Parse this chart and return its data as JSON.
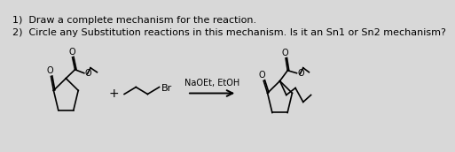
{
  "bg_color": "#d8d8d8",
  "text_line1": "1)  Draw a complete mechanism for the reaction.",
  "text_line2": "2)  Circle any Substitution reactions in this mechanism. Is it an Sn1 or Sn2 mechanism?",
  "reagent_text": "NaOEt, EtOH",
  "plus_text": "+",
  "br_text": "Br",
  "font_size_text": 8.0,
  "font_size_label": 7.0
}
